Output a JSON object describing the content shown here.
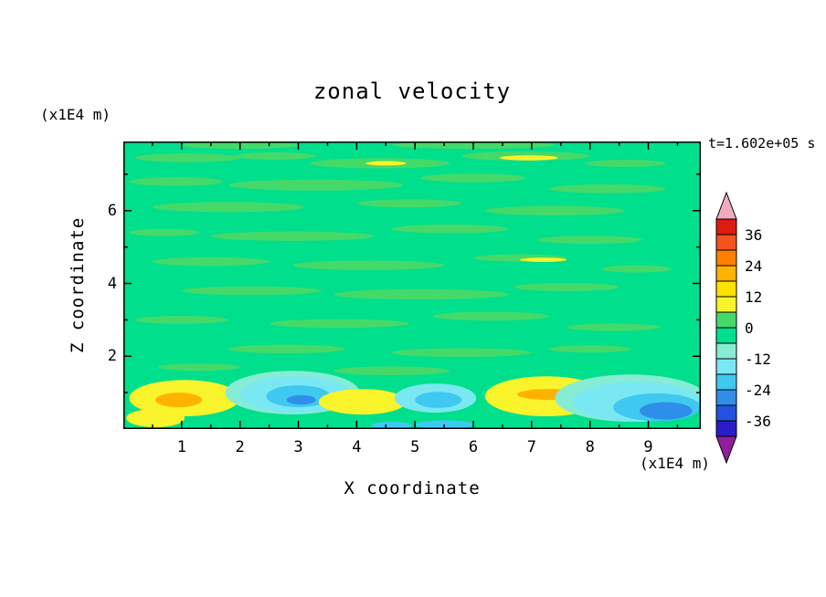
{
  "title": "zonal velocity",
  "timestamp": "t=1.602e+05 s",
  "axes": {
    "x": {
      "label": "X coordinate",
      "unit": "(x1E4 m)",
      "range": [
        0,
        9.9
      ],
      "ticks": [
        1,
        2,
        3,
        4,
        5,
        6,
        7,
        8,
        9
      ],
      "minor_ticks": [
        0.5,
        1.5,
        2.5,
        3.5,
        4.5,
        5.5,
        6.5,
        7.5,
        8.5,
        9.5
      ]
    },
    "z": {
      "label": "Z coordinate",
      "unit": "(x1E4 m)",
      "range": [
        0,
        7.9
      ],
      "ticks": [
        2,
        4,
        6
      ],
      "minor_ticks": [
        1,
        3,
        5,
        7
      ]
    }
  },
  "colorbar": {
    "max_value": 42,
    "min_value": -42,
    "step": 6,
    "labels": [
      36,
      24,
      12,
      0,
      -12,
      -24,
      -36
    ],
    "segment_colors_top_to_bottom": [
      "#dd1c10",
      "#f4531e",
      "#ff7f00",
      "#ffb300",
      "#ffe100",
      "#f8f32b",
      "#45d96a",
      "#00df8c",
      "#86ecd4",
      "#79e8f2",
      "#3fc8f0",
      "#2f8fe8",
      "#2353e0",
      "#2c1cc8"
    ],
    "arrow_top_color": "#f2abbe",
    "arrow_bottom_color": "#8f1f9e",
    "outline_color": "#000000"
  },
  "chart_data": {
    "type": "heatmap",
    "title": "zonal velocity",
    "xlabel": "X coordinate (x1E4 m)",
    "ylabel": "Z coordinate (x1E4 m)",
    "time_annotation": "t=1.602e+05 s",
    "x_range": [
      0,
      9.9
    ],
    "z_range": [
      0,
      7.9
    ],
    "contour_interval": 6,
    "levels_labeled": [
      36,
      24,
      12,
      0,
      -12,
      -24,
      -36
    ],
    "background_color": "#00df8c",
    "description": "Filled-contour zonal velocity field: near-zero (green) almost everywhere with thin horizontal streaks of the adjacent 0-6 band; stronger alternating positive (yellow/orange, up to ~+24) and negative (cyan/blue, down to ~-30) anomalies confined to the bottom boundary layer below z of about 1.5e4 m.",
    "features": [
      {
        "x": 1.1,
        "z": 7.45,
        "rx": 0.9,
        "ry": 0.12,
        "level": 3,
        "color": "#45d96a"
      },
      {
        "x": 2.6,
        "z": 7.5,
        "rx": 0.7,
        "ry": 0.1,
        "level": 3,
        "color": "#45d96a"
      },
      {
        "x": 4.4,
        "z": 7.3,
        "rx": 1.2,
        "ry": 0.14,
        "level": 3,
        "color": "#45d96a"
      },
      {
        "x": 6.9,
        "z": 7.5,
        "rx": 1.1,
        "ry": 0.13,
        "level": 3,
        "color": "#45d96a"
      },
      {
        "x": 8.6,
        "z": 7.3,
        "rx": 0.7,
        "ry": 0.1,
        "level": 3,
        "color": "#45d96a"
      },
      {
        "x": 2.0,
        "z": 7.8,
        "rx": 1.0,
        "ry": 0.1,
        "level": 3,
        "color": "#45d96a"
      },
      {
        "x": 6.0,
        "z": 7.8,
        "rx": 1.4,
        "ry": 0.1,
        "level": 3,
        "color": "#45d96a"
      },
      {
        "x": 0.9,
        "z": 6.8,
        "rx": 0.8,
        "ry": 0.12,
        "level": 3,
        "color": "#45d96a"
      },
      {
        "x": 3.3,
        "z": 6.7,
        "rx": 1.5,
        "ry": 0.15,
        "level": 3,
        "color": "#45d96a"
      },
      {
        "x": 6.0,
        "z": 6.9,
        "rx": 0.9,
        "ry": 0.12,
        "level": 3,
        "color": "#45d96a"
      },
      {
        "x": 8.3,
        "z": 6.6,
        "rx": 1.0,
        "ry": 0.12,
        "level": 3,
        "color": "#45d96a"
      },
      {
        "x": 1.8,
        "z": 6.1,
        "rx": 1.3,
        "ry": 0.14,
        "level": 3,
        "color": "#45d96a"
      },
      {
        "x": 4.9,
        "z": 6.2,
        "rx": 0.9,
        "ry": 0.11,
        "level": 3,
        "color": "#45d96a"
      },
      {
        "x": 7.4,
        "z": 6.0,
        "rx": 1.2,
        "ry": 0.13,
        "level": 3,
        "color": "#45d96a"
      },
      {
        "x": 0.7,
        "z": 5.4,
        "rx": 0.6,
        "ry": 0.1,
        "level": 3,
        "color": "#45d96a"
      },
      {
        "x": 2.9,
        "z": 5.3,
        "rx": 1.4,
        "ry": 0.13,
        "level": 3,
        "color": "#45d96a"
      },
      {
        "x": 5.6,
        "z": 5.5,
        "rx": 1.0,
        "ry": 0.12,
        "level": 3,
        "color": "#45d96a"
      },
      {
        "x": 8.0,
        "z": 5.2,
        "rx": 0.9,
        "ry": 0.11,
        "level": 3,
        "color": "#45d96a"
      },
      {
        "x": 1.5,
        "z": 4.6,
        "rx": 1.0,
        "ry": 0.12,
        "level": 3,
        "color": "#45d96a"
      },
      {
        "x": 4.2,
        "z": 4.5,
        "rx": 1.3,
        "ry": 0.13,
        "level": 3,
        "color": "#45d96a"
      },
      {
        "x": 6.8,
        "z": 4.7,
        "rx": 0.8,
        "ry": 0.1,
        "level": 3,
        "color": "#45d96a"
      },
      {
        "x": 8.8,
        "z": 4.4,
        "rx": 0.6,
        "ry": 0.1,
        "level": 3,
        "color": "#45d96a"
      },
      {
        "x": 2.2,
        "z": 3.8,
        "rx": 1.2,
        "ry": 0.12,
        "level": 3,
        "color": "#45d96a"
      },
      {
        "x": 5.1,
        "z": 3.7,
        "rx": 1.5,
        "ry": 0.14,
        "level": 3,
        "color": "#45d96a"
      },
      {
        "x": 7.6,
        "z": 3.9,
        "rx": 0.9,
        "ry": 0.11,
        "level": 3,
        "color": "#45d96a"
      },
      {
        "x": 1.0,
        "z": 3.0,
        "rx": 0.8,
        "ry": 0.11,
        "level": 3,
        "color": "#45d96a"
      },
      {
        "x": 3.7,
        "z": 2.9,
        "rx": 1.2,
        "ry": 0.12,
        "level": 3,
        "color": "#45d96a"
      },
      {
        "x": 6.3,
        "z": 3.1,
        "rx": 1.0,
        "ry": 0.12,
        "level": 3,
        "color": "#45d96a"
      },
      {
        "x": 8.4,
        "z": 2.8,
        "rx": 0.8,
        "ry": 0.1,
        "level": 3,
        "color": "#45d96a"
      },
      {
        "x": 2.8,
        "z": 2.2,
        "rx": 1.0,
        "ry": 0.12,
        "level": 3,
        "color": "#45d96a"
      },
      {
        "x": 5.8,
        "z": 2.1,
        "rx": 1.2,
        "ry": 0.12,
        "level": 3,
        "color": "#45d96a"
      },
      {
        "x": 8.0,
        "z": 2.2,
        "rx": 0.7,
        "ry": 0.1,
        "level": 3,
        "color": "#45d96a"
      },
      {
        "x": 1.3,
        "z": 1.7,
        "rx": 0.7,
        "ry": 0.1,
        "level": 3,
        "color": "#45d96a"
      },
      {
        "x": 4.6,
        "z": 1.6,
        "rx": 1.0,
        "ry": 0.12,
        "level": 3,
        "color": "#45d96a"
      },
      {
        "x": 6.95,
        "z": 7.45,
        "rx": 0.5,
        "ry": 0.07,
        "level": 9,
        "color": "#f8f32b"
      },
      {
        "x": 4.5,
        "z": 7.3,
        "rx": 0.35,
        "ry": 0.06,
        "level": 9,
        "color": "#f8f32b"
      },
      {
        "x": 7.2,
        "z": 4.65,
        "rx": 0.4,
        "ry": 0.06,
        "level": 9,
        "color": "#f8f32b"
      },
      {
        "x": 1.05,
        "z": 0.85,
        "rx": 0.95,
        "ry": 0.5,
        "level": 9,
        "color": "#f8f32b"
      },
      {
        "x": 0.95,
        "z": 0.8,
        "rx": 0.4,
        "ry": 0.2,
        "level": 21,
        "color": "#ffb300"
      },
      {
        "x": 0.55,
        "z": 0.3,
        "rx": 0.5,
        "ry": 0.25,
        "level": 9,
        "color": "#f8f32b"
      },
      {
        "x": 2.9,
        "z": 1.0,
        "rx": 1.15,
        "ry": 0.6,
        "level": -9,
        "color": "#86ecd4"
      },
      {
        "x": 2.95,
        "z": 0.95,
        "rx": 0.95,
        "ry": 0.5,
        "level": -15,
        "color": "#79e8f2"
      },
      {
        "x": 3.0,
        "z": 0.9,
        "rx": 0.55,
        "ry": 0.3,
        "level": -21,
        "color": "#3fc8f0"
      },
      {
        "x": 3.05,
        "z": 0.8,
        "rx": 0.25,
        "ry": 0.13,
        "level": -27,
        "color": "#2f8fe8"
      },
      {
        "x": 4.1,
        "z": 0.75,
        "rx": 0.75,
        "ry": 0.35,
        "level": 9,
        "color": "#f8f32b"
      },
      {
        "x": 5.35,
        "z": 0.85,
        "rx": 0.7,
        "ry": 0.4,
        "level": -15,
        "color": "#79e8f2"
      },
      {
        "x": 5.4,
        "z": 0.8,
        "rx": 0.4,
        "ry": 0.22,
        "level": -21,
        "color": "#3fc8f0"
      },
      {
        "x": 5.5,
        "z": 0.12,
        "rx": 0.5,
        "ry": 0.12,
        "level": -21,
        "color": "#3fc8f0"
      },
      {
        "x": 4.6,
        "z": 0.1,
        "rx": 0.35,
        "ry": 0.1,
        "level": -21,
        "color": "#3fc8f0"
      },
      {
        "x": 7.25,
        "z": 0.9,
        "rx": 1.05,
        "ry": 0.55,
        "level": 9,
        "color": "#f8f32b"
      },
      {
        "x": 7.3,
        "z": 0.95,
        "rx": 0.55,
        "ry": 0.15,
        "level": 21,
        "color": "#ffb300"
      },
      {
        "x": 8.7,
        "z": 0.85,
        "rx": 1.3,
        "ry": 0.65,
        "level": -9,
        "color": "#86ecd4"
      },
      {
        "x": 8.8,
        "z": 0.75,
        "rx": 1.1,
        "ry": 0.55,
        "level": -15,
        "color": "#79e8f2"
      },
      {
        "x": 9.15,
        "z": 0.6,
        "rx": 0.75,
        "ry": 0.38,
        "level": -21,
        "color": "#3fc8f0"
      },
      {
        "x": 9.3,
        "z": 0.5,
        "rx": 0.45,
        "ry": 0.24,
        "level": -27,
        "color": "#2f8fe8"
      }
    ]
  }
}
